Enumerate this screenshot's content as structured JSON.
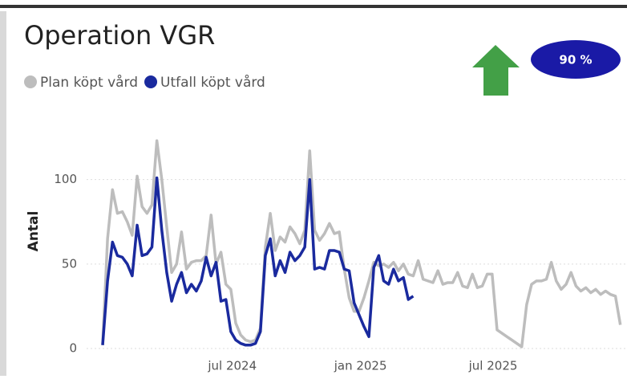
{
  "chart_data": {
    "type": "line",
    "title": "Operation VGR",
    "ylabel": "Antal",
    "kpi": "90 %",
    "x": [
      0,
      1,
      2,
      3,
      4,
      5,
      6,
      7,
      8,
      9,
      10,
      11,
      12,
      13,
      14,
      15,
      16,
      17,
      18,
      19,
      20,
      21,
      22,
      23,
      24,
      25,
      26,
      27,
      28,
      29,
      30,
      31,
      32,
      33,
      34,
      35,
      36,
      37,
      38,
      39,
      40,
      41,
      42,
      43,
      44,
      45,
      46,
      47,
      48,
      49,
      50,
      51,
      52,
      53,
      54,
      55,
      56,
      57,
      58,
      59,
      60,
      61,
      62,
      63,
      64,
      65,
      66,
      67,
      68,
      69,
      70,
      71,
      72,
      73,
      74,
      75,
      76,
      77,
      78,
      79,
      80,
      81,
      82,
      83,
      84,
      85,
      86,
      87,
      88,
      89,
      90,
      91,
      92,
      93,
      94,
      95,
      96,
      97,
      98,
      99,
      100,
      101,
      102,
      103,
      104,
      105
    ],
    "series": [
      {
        "name": "Plan köpt vård",
        "color": "#bdbdbd",
        "values": [
          2,
          65,
          94,
          80,
          81,
          75,
          67,
          102,
          84,
          80,
          85,
          123,
          100,
          72,
          45,
          50,
          69,
          47,
          51,
          52,
          52,
          55,
          79,
          50,
          57,
          38,
          35,
          15,
          8,
          5,
          4,
          5,
          12,
          60,
          80,
          58,
          66,
          63,
          72,
          68,
          62,
          70,
          117,
          70,
          64,
          68,
          74,
          68,
          69,
          47,
          30,
          22,
          22,
          30,
          40,
          51,
          49,
          50,
          48,
          51,
          46,
          50,
          44,
          43,
          52,
          41,
          40,
          39,
          46,
          38,
          39,
          39,
          45,
          37,
          36,
          44,
          36,
          37,
          44,
          44,
          11,
          9,
          7,
          5,
          3,
          1,
          26,
          38,
          40,
          40,
          41,
          51,
          40,
          35,
          38,
          45,
          37,
          34,
          36,
          33,
          35,
          32,
          34,
          32,
          31,
          14
        ]
      },
      {
        "name": "Utfall köpt vård",
        "color": "#1a2a9e",
        "values": [
          2,
          40,
          63,
          55,
          54,
          50,
          43,
          73,
          55,
          56,
          60,
          101,
          70,
          45,
          28,
          38,
          45,
          33,
          38,
          34,
          40,
          54,
          43,
          51,
          28,
          29,
          10,
          5,
          3,
          2,
          2,
          3,
          10,
          55,
          65,
          43,
          52,
          45,
          57,
          52,
          55,
          60,
          100,
          47,
          48,
          47,
          58,
          58,
          57,
          47,
          46,
          27,
          20,
          13,
          7,
          48,
          55,
          40,
          38,
          47,
          40,
          42,
          29,
          31,
          null,
          null,
          null,
          null,
          null,
          null,
          null,
          null,
          null,
          null,
          null,
          null,
          null,
          null,
          null,
          null,
          null,
          null,
          null,
          null,
          null,
          null,
          null,
          null,
          null,
          null,
          null,
          null,
          null,
          null,
          null,
          null,
          null,
          null,
          null,
          null,
          null,
          null,
          null,
          null,
          null,
          null
        ]
      }
    ],
    "xlim": [
      0,
      105.7
    ],
    "xticks": [
      {
        "value": 26.3,
        "label": "jul 2024"
      },
      {
        "value": 52.3,
        "label": "jan 2025"
      },
      {
        "value": 79.2,
        "label": "jul 2025"
      }
    ],
    "ylim": [
      0,
      135
    ],
    "yticks": [
      0,
      50,
      100
    ],
    "grid": true
  }
}
